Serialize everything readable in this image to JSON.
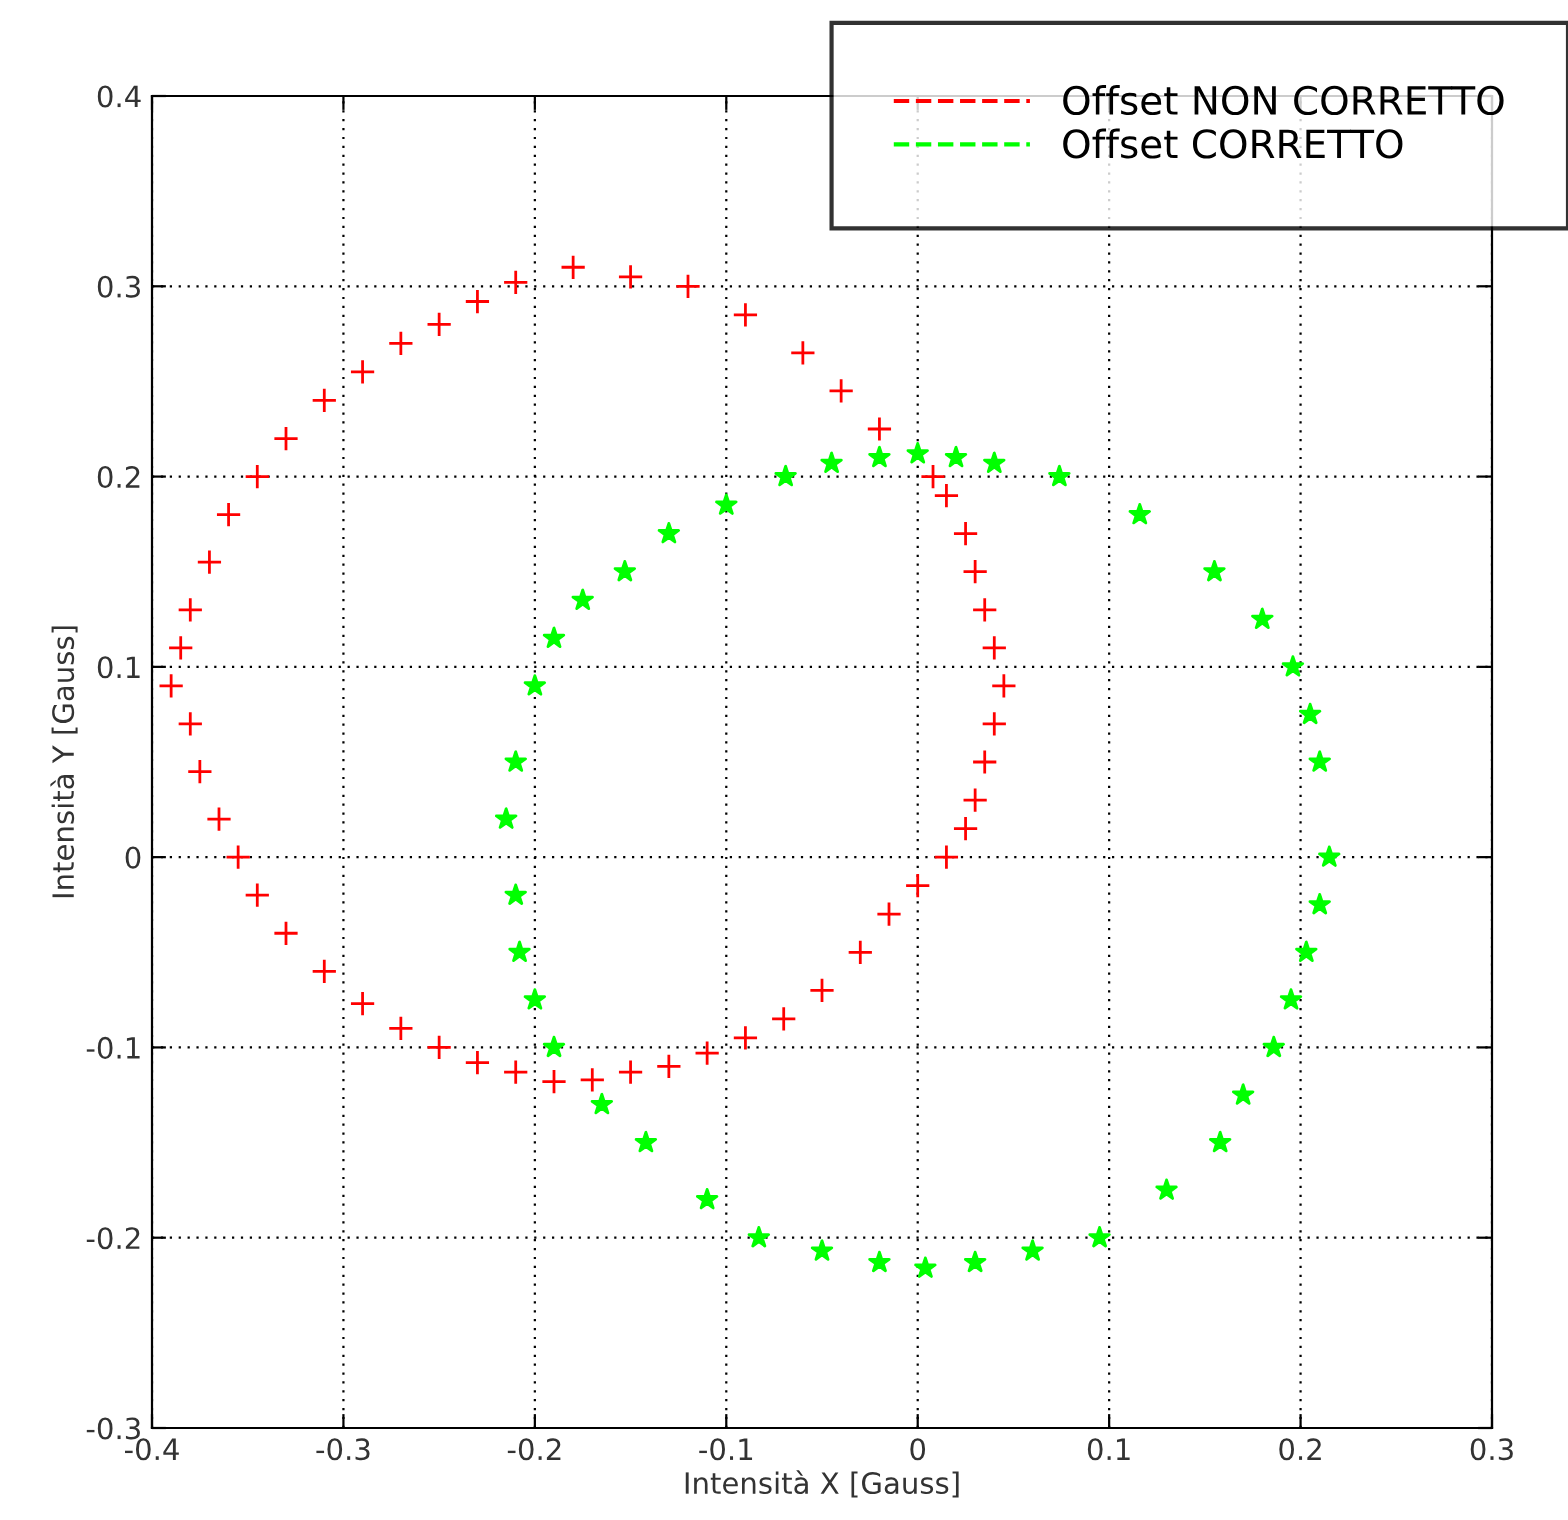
{
  "chart_data": {
    "type": "scatter",
    "xlabel": "Intensità X [Gauss]",
    "ylabel": "Intensità Y [Gauss]",
    "xlim": [
      -0.4,
      0.3
    ],
    "ylim": [
      -0.3,
      0.4
    ],
    "xticks": [
      -0.4,
      -0.3,
      -0.2,
      -0.1,
      0,
      0.1,
      0.2,
      0.3
    ],
    "yticks": [
      -0.3,
      -0.2,
      -0.1,
      0,
      0.1,
      0.2,
      0.3,
      0.4
    ],
    "grid": true,
    "legend": "top right",
    "line_style": "dashed",
    "series": [
      {
        "name": "Offset NON CORRETTO",
        "color": "#ff0000",
        "marker": "cross",
        "x": [
          -0.18,
          -0.15,
          -0.12,
          -0.09,
          -0.06,
          -0.04,
          -0.02,
          0.008,
          0.015,
          0.025,
          0.03,
          0.035,
          0.04,
          0.045,
          0.04,
          0.035,
          0.03,
          0.025,
          0.015,
          0.0,
          -0.015,
          -0.03,
          -0.05,
          -0.07,
          -0.09,
          -0.11,
          -0.13,
          -0.15,
          -0.17,
          -0.19,
          -0.21,
          -0.23,
          -0.25,
          -0.27,
          -0.29,
          -0.31,
          -0.33,
          -0.345,
          -0.355,
          -0.365,
          -0.375,
          -0.38,
          -0.39,
          -0.385,
          -0.38,
          -0.37,
          -0.36,
          -0.345,
          -0.33,
          -0.31,
          -0.29,
          -0.27,
          -0.25,
          -0.23,
          -0.21
        ],
        "values": [
          0.31,
          0.305,
          0.3,
          0.285,
          0.265,
          0.245,
          0.225,
          0.2,
          0.19,
          0.17,
          0.15,
          0.13,
          0.11,
          0.09,
          0.07,
          0.05,
          0.03,
          0.015,
          0.0,
          -0.015,
          -0.03,
          -0.05,
          -0.07,
          -0.085,
          -0.095,
          -0.103,
          -0.11,
          -0.113,
          -0.117,
          -0.118,
          -0.113,
          -0.108,
          -0.1,
          -0.09,
          -0.077,
          -0.06,
          -0.04,
          -0.02,
          0.0,
          0.02,
          0.045,
          0.07,
          0.09,
          0.11,
          0.13,
          0.155,
          0.18,
          0.2,
          0.22,
          0.24,
          0.255,
          0.27,
          0.28,
          0.292,
          0.302
        ]
      },
      {
        "name": "Offset CORRETTO",
        "color": "#00ff00",
        "marker": "star",
        "x": [
          -0.02,
          0.0,
          0.02,
          0.04,
          0.074,
          0.116,
          0.155,
          0.18,
          0.196,
          0.205,
          0.21,
          0.215,
          0.21,
          0.203,
          0.195,
          0.186,
          0.17,
          0.158,
          0.13,
          0.095,
          0.06,
          0.03,
          0.004,
          -0.02,
          -0.05,
          -0.083,
          -0.11,
          -0.142,
          -0.165,
          -0.19,
          -0.2,
          -0.208,
          -0.21,
          -0.215,
          -0.21,
          -0.2,
          -0.19,
          -0.175,
          -0.153,
          -0.13,
          -0.1,
          -0.069,
          -0.045
        ],
        "values": [
          0.21,
          0.212,
          0.21,
          0.207,
          0.2,
          0.18,
          0.15,
          0.125,
          0.1,
          0.075,
          0.05,
          0.0,
          -0.025,
          -0.05,
          -0.075,
          -0.1,
          -0.125,
          -0.15,
          -0.175,
          -0.2,
          -0.207,
          -0.213,
          -0.216,
          -0.213,
          -0.207,
          -0.2,
          -0.18,
          -0.15,
          -0.13,
          -0.1,
          -0.075,
          -0.05,
          -0.02,
          0.02,
          0.05,
          0.09,
          0.115,
          0.135,
          0.15,
          0.17,
          0.185,
          0.2,
          0.207
        ]
      }
    ]
  }
}
